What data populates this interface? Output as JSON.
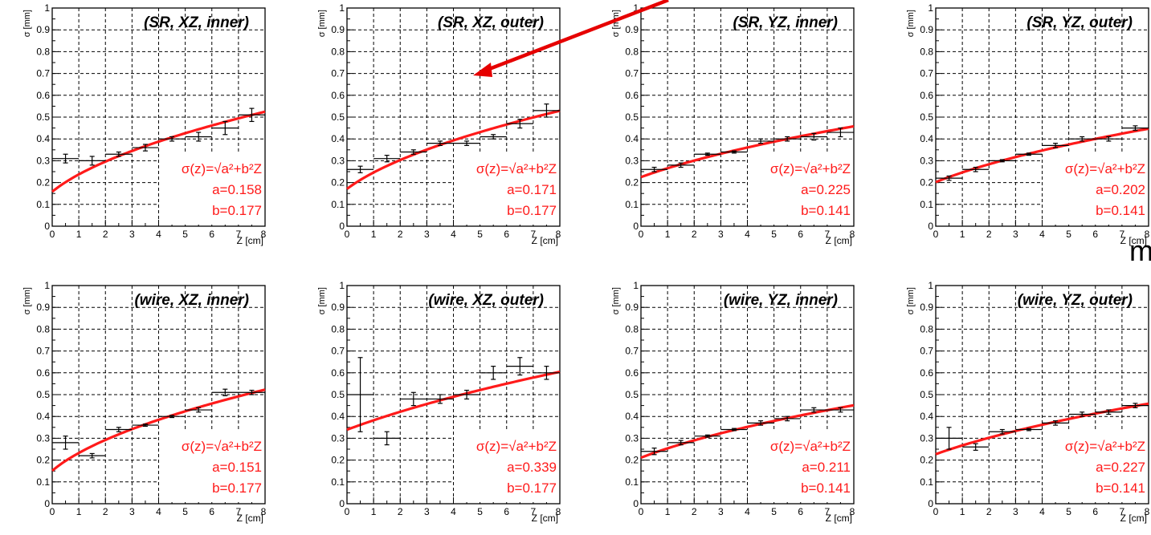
{
  "stray_text": "m",
  "colors": {
    "fit": "#ff1a1a",
    "data": "#000000",
    "arrow": "#e60000"
  },
  "chart_data": [
    {
      "type": "scatter",
      "title": "(SR, XZ, inner)",
      "xlabel": "Z [cm]",
      "ylabel": "σ [mm]",
      "xlim": [
        0,
        8
      ],
      "ylim": [
        0,
        1
      ],
      "grid": true,
      "x": [
        0.5,
        1.5,
        2.5,
        3.5,
        4.5,
        5.5,
        6.5,
        7.5
      ],
      "y": [
        0.31,
        0.3,
        0.33,
        0.36,
        0.4,
        0.41,
        0.45,
        0.51
      ],
      "yerr": [
        0.02,
        0.02,
        0.01,
        0.015,
        0.01,
        0.02,
        0.03,
        0.03
      ],
      "formula": "σ(z)=√a²+b²Z",
      "a": "a=0.158",
      "b": "b=0.177",
      "fit_a": 0.158,
      "fit_b": 0.177
    },
    {
      "type": "scatter",
      "title": "(SR, XZ, outer)",
      "xlabel": "Z [cm]",
      "ylabel": "σ [mm]",
      "xlim": [
        0,
        8
      ],
      "ylim": [
        0,
        1
      ],
      "grid": true,
      "x": [
        0.5,
        1.5,
        2.5,
        3.5,
        4.5,
        5.5,
        6.5,
        7.5
      ],
      "y": [
        0.26,
        0.31,
        0.34,
        0.38,
        0.38,
        0.41,
        0.47,
        0.53
      ],
      "yerr": [
        0.015,
        0.015,
        0.01,
        0.01,
        0.01,
        0.01,
        0.02,
        0.03
      ],
      "formula": "σ(z)=√a²+b²Z",
      "a": "a=0.171",
      "b": "b=0.177",
      "fit_a": 0.171,
      "fit_b": 0.177
    },
    {
      "type": "scatter",
      "title": "(SR, YZ, inner)",
      "xlabel": "Z [cm]",
      "ylabel": "σ [mm]",
      "xlim": [
        0,
        8
      ],
      "ylim": [
        0,
        1
      ],
      "grid": true,
      "x": [
        0.5,
        1.5,
        2.5,
        3.5,
        4.5,
        5.5,
        6.5,
        7.5
      ],
      "y": [
        0.26,
        0.28,
        0.33,
        0.34,
        0.39,
        0.4,
        0.41,
        0.43
      ],
      "yerr": [
        0.01,
        0.01,
        0.005,
        0.005,
        0.01,
        0.01,
        0.015,
        0.02
      ],
      "formula": "σ(z)=√a²+b²Z",
      "a": "a=0.225",
      "b": "b=0.141",
      "fit_a": 0.225,
      "fit_b": 0.141
    },
    {
      "type": "scatter",
      "title": "(SR, YZ, outer)",
      "xlabel": "Z [cm]",
      "ylabel": "σ [mm]",
      "xlim": [
        0,
        8
      ],
      "ylim": [
        0,
        1
      ],
      "grid": true,
      "x": [
        0.5,
        1.5,
        2.5,
        3.5,
        4.5,
        5.5,
        6.5,
        7.5
      ],
      "y": [
        0.22,
        0.26,
        0.3,
        0.33,
        0.37,
        0.4,
        0.4,
        0.45
      ],
      "yerr": [
        0.01,
        0.01,
        0.005,
        0.005,
        0.01,
        0.01,
        0.01,
        0.01
      ],
      "formula": "σ(z)=√a²+b²Z",
      "a": "a=0.202",
      "b": "b=0.141",
      "fit_a": 0.202,
      "fit_b": 0.141
    },
    {
      "type": "scatter",
      "title": "(wire, XZ, inner)",
      "xlabel": "Z [cm]",
      "ylabel": "σ [mm]",
      "xlim": [
        0,
        8
      ],
      "ylim": [
        0,
        1
      ],
      "grid": true,
      "x": [
        0.5,
        1.5,
        2.5,
        3.5,
        4.5,
        5.5,
        6.5,
        7.5
      ],
      "y": [
        0.28,
        0.22,
        0.34,
        0.36,
        0.4,
        0.43,
        0.51,
        0.51
      ],
      "yerr": [
        0.03,
        0.01,
        0.01,
        0.005,
        0.005,
        0.01,
        0.015,
        0.01
      ],
      "formula": "σ(z)=√a²+b²Z",
      "a": "a=0.151",
      "b": "b=0.177",
      "fit_a": 0.151,
      "fit_b": 0.177
    },
    {
      "type": "scatter",
      "title": "(wire, XZ, outer)",
      "xlabel": "Z [cm]",
      "ylabel": "σ [mm]",
      "xlim": [
        0,
        8
      ],
      "ylim": [
        0,
        1
      ],
      "grid": true,
      "x": [
        0.5,
        1.5,
        2.5,
        3.5,
        4.5,
        5.5,
        6.5,
        7.5
      ],
      "y": [
        0.5,
        0.3,
        0.48,
        0.48,
        0.5,
        0.6,
        0.63,
        0.6
      ],
      "yerr": [
        0.17,
        0.03,
        0.03,
        0.02,
        0.02,
        0.03,
        0.04,
        0.03
      ],
      "formula": "σ(z)=√a²+b²Z",
      "a": "a=0.339",
      "b": "b=0.177",
      "fit_a": 0.339,
      "fit_b": 0.177
    },
    {
      "type": "scatter",
      "title": "(wire, YZ, inner)",
      "xlabel": "Z [cm]",
      "ylabel": "σ [mm]",
      "xlim": [
        0,
        8
      ],
      "ylim": [
        0,
        1
      ],
      "grid": true,
      "x": [
        0.5,
        1.5,
        2.5,
        3.5,
        4.5,
        5.5,
        6.5,
        7.5
      ],
      "y": [
        0.24,
        0.28,
        0.31,
        0.34,
        0.37,
        0.39,
        0.43,
        0.43
      ],
      "yerr": [
        0.015,
        0.01,
        0.005,
        0.005,
        0.01,
        0.01,
        0.01,
        0.01
      ],
      "formula": "σ(z)=√a²+b²Z",
      "a": "a=0.211",
      "b": "b=0.141",
      "fit_a": 0.211,
      "fit_b": 0.141
    },
    {
      "type": "scatter",
      "title": "(wire, YZ, outer)",
      "xlabel": "Z [cm]",
      "ylabel": "σ [mm]",
      "xlim": [
        0,
        8
      ],
      "ylim": [
        0,
        1
      ],
      "grid": true,
      "x": [
        0.5,
        1.5,
        2.5,
        3.5,
        4.5,
        5.5,
        6.5,
        7.5
      ],
      "y": [
        0.3,
        0.26,
        0.33,
        0.34,
        0.37,
        0.41,
        0.42,
        0.45
      ],
      "yerr": [
        0.05,
        0.015,
        0.01,
        0.005,
        0.01,
        0.01,
        0.01,
        0.01
      ],
      "formula": "σ(z)=√a²+b²Z",
      "a": "a=0.227",
      "b": "b=0.141",
      "fit_a": 0.227,
      "fit_b": 0.141
    }
  ]
}
